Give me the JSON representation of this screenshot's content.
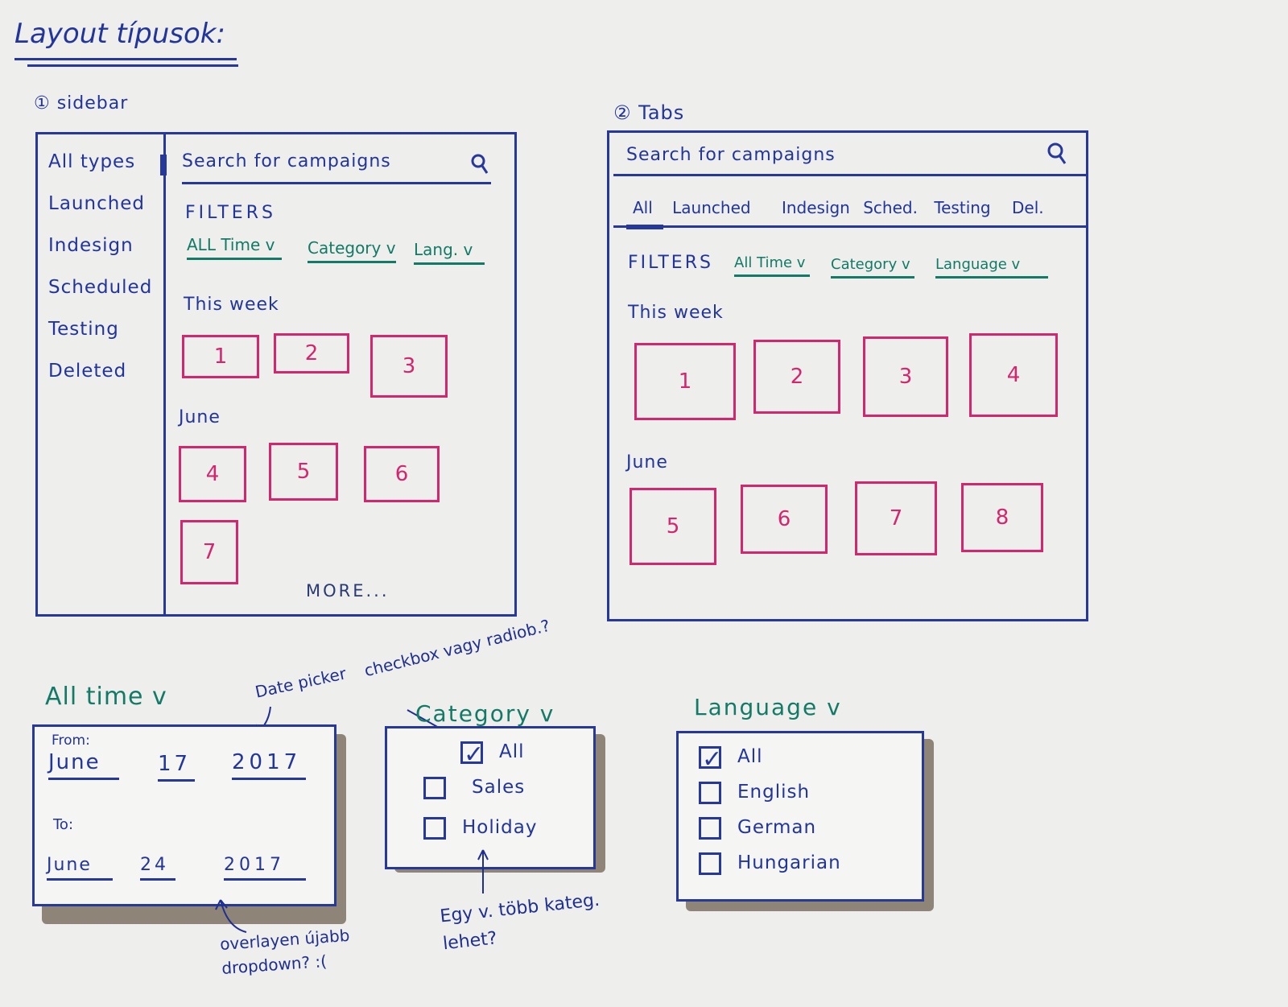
{
  "title": "Layout típusok:",
  "section1": {
    "label": "① sidebar",
    "sidebar_items": [
      "All types",
      "Launched",
      "Indesign",
      "Scheduled",
      "Testing",
      "Deleted"
    ],
    "search": "Search for campaigns",
    "filters_label": "FILTERS",
    "filters": [
      "ALL Time v",
      "Category v",
      "Lang. v"
    ],
    "group1": "This week",
    "group1_tiles": [
      "1",
      "2",
      "3"
    ],
    "group2": "June",
    "group2_tiles": [
      "4",
      "5",
      "6",
      "7"
    ],
    "more": "MORE..."
  },
  "section2": {
    "label": "② Tabs",
    "search": "Search for campaigns",
    "tabs": [
      "All",
      "Launched",
      "Indesign",
      "Sched.",
      "Testing",
      "Del."
    ],
    "filters_label": "FILTERS",
    "filters": [
      "All Time v",
      "Category v",
      "Language v"
    ],
    "group1": "This week",
    "group1_tiles": [
      "1",
      "2",
      "3",
      "4"
    ],
    "group2": "June",
    "group2_tiles": [
      "5",
      "6",
      "7",
      "8"
    ]
  },
  "alltime": {
    "title": "All time v",
    "from_label": "From:",
    "from": [
      "June",
      "17",
      "2017"
    ],
    "to_label": "To:",
    "to": [
      "June",
      "24",
      "2017"
    ],
    "note_datepicker": "Date picker",
    "note_overlay": "overlayen újabb dropdown? :("
  },
  "category": {
    "title": "Category v",
    "options": [
      "All",
      "Sales",
      "Holiday"
    ],
    "note_top": "checkbox vagy radiob.?",
    "note_bottom": "Egy v. több kateg. lehet?"
  },
  "language": {
    "title": "Language v",
    "options": [
      "All",
      "English",
      "German",
      "Hungarian"
    ]
  }
}
